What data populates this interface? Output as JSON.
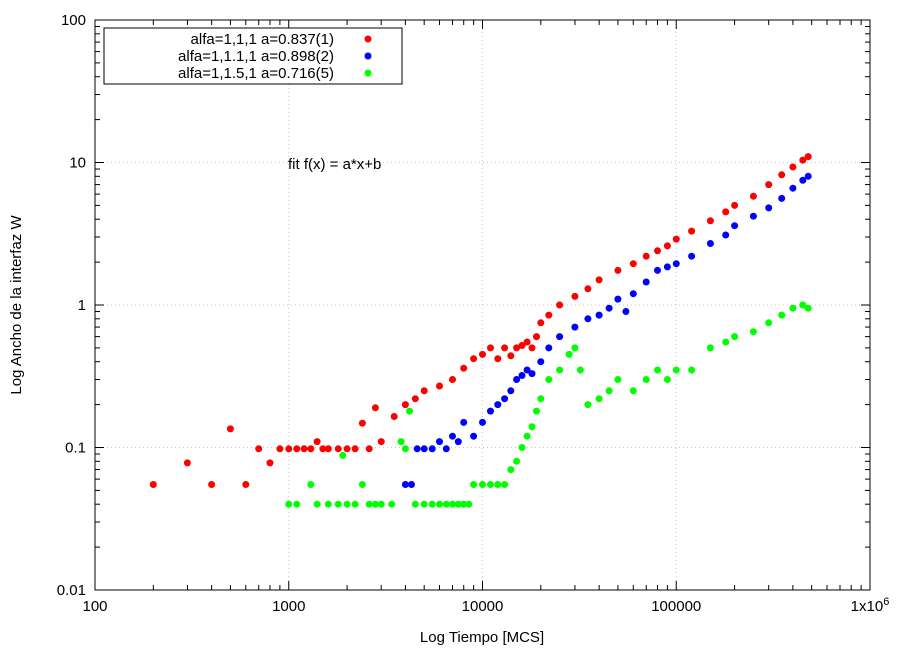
{
  "chart_data": {
    "type": "scatter",
    "title": "",
    "xlabel": "Log Tiempo [MCS]",
    "ylabel": "Log Ancho de la interfaz W",
    "x_scale": "log",
    "y_scale": "log",
    "xlim": [
      100,
      1000000
    ],
    "ylim": [
      0.01,
      100
    ],
    "x_ticks": [
      {
        "value": 100,
        "label": "100"
      },
      {
        "value": 1000,
        "label": "1000"
      },
      {
        "value": 10000,
        "label": "10000"
      },
      {
        "value": 100000,
        "label": "100000"
      },
      {
        "value": 1000000,
        "label": "1x10",
        "sup": "6"
      }
    ],
    "y_ticks": [
      {
        "value": 0.01,
        "label": "0.01"
      },
      {
        "value": 0.1,
        "label": "0.1"
      },
      {
        "value": 1,
        "label": "1"
      },
      {
        "value": 10,
        "label": "10"
      },
      {
        "value": 100,
        "label": "100"
      }
    ],
    "grid": true,
    "legend_position": "top-left",
    "annotation": "fit f(x) = a*x+b",
    "series": [
      {
        "name": "alfa=1,1,1 a=0.837(1)",
        "color": "#ff0000",
        "points": [
          [
            200,
            0.055
          ],
          [
            300,
            0.078
          ],
          [
            400,
            0.055
          ],
          [
            500,
            0.135
          ],
          [
            600,
            0.055
          ],
          [
            700,
            0.098
          ],
          [
            800,
            0.078
          ],
          [
            900,
            0.098
          ],
          [
            1000,
            0.098
          ],
          [
            1100,
            0.098
          ],
          [
            1200,
            0.098
          ],
          [
            1300,
            0.098
          ],
          [
            1400,
            0.11
          ],
          [
            1500,
            0.098
          ],
          [
            1600,
            0.098
          ],
          [
            1800,
            0.098
          ],
          [
            2000,
            0.098
          ],
          [
            2200,
            0.098
          ],
          [
            2400,
            0.148
          ],
          [
            2600,
            0.098
          ],
          [
            2800,
            0.19
          ],
          [
            3000,
            0.11
          ],
          [
            3500,
            0.165
          ],
          [
            4000,
            0.2
          ],
          [
            4500,
            0.22
          ],
          [
            5000,
            0.25
          ],
          [
            6000,
            0.27
          ],
          [
            7000,
            0.3
          ],
          [
            8000,
            0.36
          ],
          [
            9000,
            0.42
          ],
          [
            10000,
            0.45
          ],
          [
            11000,
            0.5
          ],
          [
            12000,
            0.42
          ],
          [
            13000,
            0.5
          ],
          [
            14000,
            0.44
          ],
          [
            15000,
            0.5
          ],
          [
            16000,
            0.52
          ],
          [
            17000,
            0.55
          ],
          [
            18000,
            0.5
          ],
          [
            19000,
            0.6
          ],
          [
            20000,
            0.75
          ],
          [
            22000,
            0.85
          ],
          [
            25000,
            1.0
          ],
          [
            30000,
            1.15
          ],
          [
            35000,
            1.3
          ],
          [
            40000,
            1.5
          ],
          [
            50000,
            1.75
          ],
          [
            60000,
            1.95
          ],
          [
            70000,
            2.2
          ],
          [
            80000,
            2.4
          ],
          [
            90000,
            2.6
          ],
          [
            100000,
            2.9
          ],
          [
            120000,
            3.3
          ],
          [
            150000,
            3.9
          ],
          [
            180000,
            4.5
          ],
          [
            200000,
            5.0
          ],
          [
            250000,
            5.8
          ],
          [
            300000,
            7.0
          ],
          [
            350000,
            8.2
          ],
          [
            400000,
            9.3
          ],
          [
            450000,
            10.4
          ],
          [
            480000,
            11.0
          ]
        ]
      },
      {
        "name": "alfa=1,1.1,1 a=0.898(2)",
        "color": "#0000ff",
        "points": [
          [
            4000,
            0.055
          ],
          [
            4300,
            0.055
          ],
          [
            4600,
            0.098
          ],
          [
            5000,
            0.098
          ],
          [
            5500,
            0.098
          ],
          [
            6000,
            0.11
          ],
          [
            6500,
            0.098
          ],
          [
            7000,
            0.12
          ],
          [
            7500,
            0.11
          ],
          [
            8000,
            0.15
          ],
          [
            9000,
            0.12
          ],
          [
            10000,
            0.15
          ],
          [
            11000,
            0.18
          ],
          [
            12000,
            0.2
          ],
          [
            13000,
            0.22
          ],
          [
            14000,
            0.25
          ],
          [
            15000,
            0.3
          ],
          [
            16000,
            0.32
          ],
          [
            17000,
            0.35
          ],
          [
            18000,
            0.33
          ],
          [
            20000,
            0.4
          ],
          [
            22000,
            0.5
          ],
          [
            25000,
            0.6
          ],
          [
            30000,
            0.7
          ],
          [
            35000,
            0.8
          ],
          [
            40000,
            0.85
          ],
          [
            45000,
            0.95
          ],
          [
            50000,
            1.1
          ],
          [
            55000,
            0.9
          ],
          [
            60000,
            1.2
          ],
          [
            70000,
            1.45
          ],
          [
            80000,
            1.75
          ],
          [
            90000,
            1.85
          ],
          [
            100000,
            1.95
          ],
          [
            120000,
            2.2
          ],
          [
            150000,
            2.7
          ],
          [
            180000,
            3.1
          ],
          [
            200000,
            3.6
          ],
          [
            250000,
            4.2
          ],
          [
            300000,
            4.8
          ],
          [
            350000,
            5.6
          ],
          [
            400000,
            6.6
          ],
          [
            450000,
            7.5
          ],
          [
            480000,
            8.0
          ]
        ]
      },
      {
        "name": "alfa=1,1.5,1 a=0.716(5)",
        "color": "#00ff00",
        "points": [
          [
            1000,
            0.04
          ],
          [
            1100,
            0.04
          ],
          [
            1300,
            0.055
          ],
          [
            1400,
            0.04
          ],
          [
            1600,
            0.04
          ],
          [
            1800,
            0.04
          ],
          [
            1900,
            0.088
          ],
          [
            2000,
            0.04
          ],
          [
            2200,
            0.04
          ],
          [
            2400,
            0.055
          ],
          [
            2600,
            0.04
          ],
          [
            2800,
            0.04
          ],
          [
            3000,
            0.04
          ],
          [
            3400,
            0.04
          ],
          [
            3800,
            0.11
          ],
          [
            4000,
            0.098
          ],
          [
            4200,
            0.18
          ],
          [
            4500,
            0.04
          ],
          [
            5000,
            0.04
          ],
          [
            5500,
            0.04
          ],
          [
            6000,
            0.04
          ],
          [
            6500,
            0.04
          ],
          [
            7000,
            0.04
          ],
          [
            7500,
            0.04
          ],
          [
            8000,
            0.04
          ],
          [
            8500,
            0.04
          ],
          [
            9000,
            0.055
          ],
          [
            10000,
            0.055
          ],
          [
            11000,
            0.055
          ],
          [
            12000,
            0.055
          ],
          [
            13000,
            0.055
          ],
          [
            14000,
            0.07
          ],
          [
            15000,
            0.08
          ],
          [
            16000,
            0.1
          ],
          [
            17000,
            0.12
          ],
          [
            18000,
            0.14
          ],
          [
            19000,
            0.18
          ],
          [
            20000,
            0.22
          ],
          [
            22000,
            0.3
          ],
          [
            25000,
            0.35
          ],
          [
            28000,
            0.45
          ],
          [
            30000,
            0.5
          ],
          [
            32000,
            0.35
          ],
          [
            35000,
            0.2
          ],
          [
            40000,
            0.22
          ],
          [
            45000,
            0.25
          ],
          [
            50000,
            0.3
          ],
          [
            60000,
            0.25
          ],
          [
            70000,
            0.3
          ],
          [
            80000,
            0.35
          ],
          [
            90000,
            0.3
          ],
          [
            100000,
            0.35
          ],
          [
            120000,
            0.35
          ],
          [
            150000,
            0.5
          ],
          [
            180000,
            0.55
          ],
          [
            200000,
            0.6
          ],
          [
            250000,
            0.65
          ],
          [
            300000,
            0.75
          ],
          [
            350000,
            0.85
          ],
          [
            400000,
            0.95
          ],
          [
            450000,
            1.0
          ],
          [
            480000,
            0.95
          ]
        ]
      }
    ]
  }
}
